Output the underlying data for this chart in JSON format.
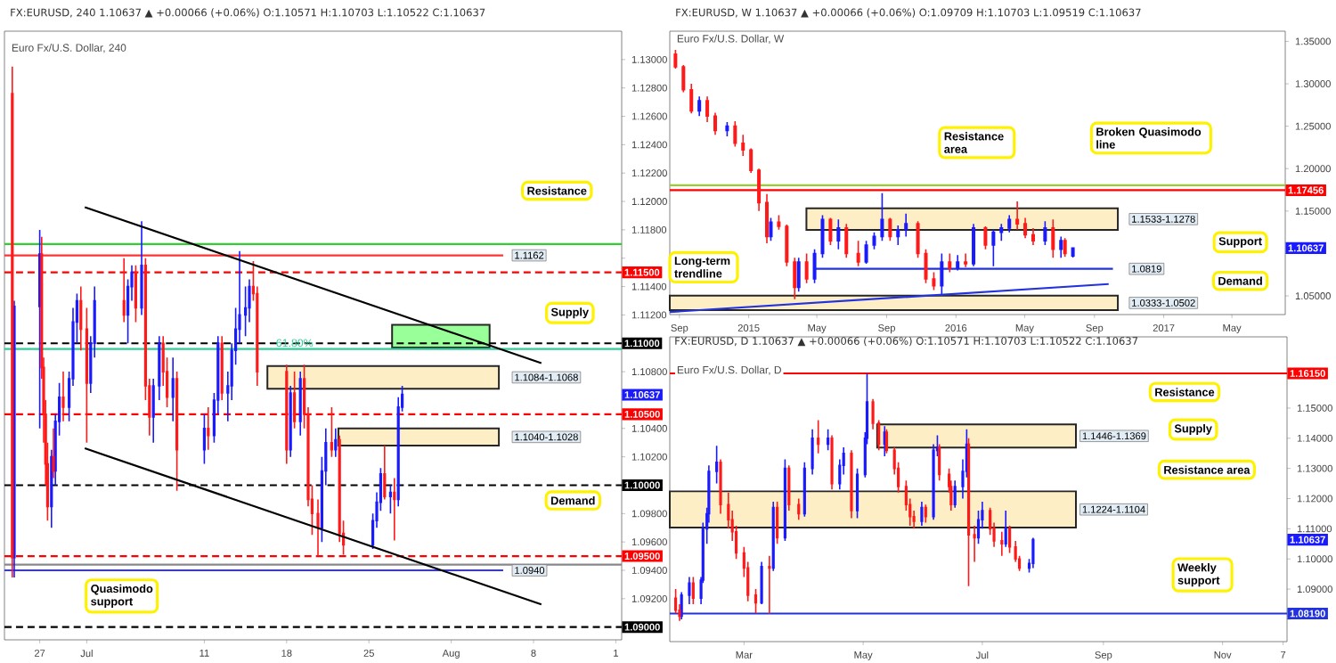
{
  "chart_data": [
    {
      "type": "candlestick",
      "title": "FX:EURUSD, 240 1.10637 ▲ +0.00066 (+0.06%) O:1.10571 H:1.10703 L:1.10522 C:1.10637",
      "subtitle": "Euro Fx/U.S. Dollar, 240",
      "xlim": [
        "2016-06-24T00:00",
        "2016-08-15T12:00"
      ],
      "ylim": [
        1.0891,
        1.132
      ],
      "xticks": [
        {
          "value": "2016-06-27",
          "label": "27"
        },
        {
          "value": "2016-07-01",
          "label": "Jul"
        },
        {
          "value": "2016-07-11",
          "label": "11"
        },
        {
          "value": "2016-07-18",
          "label": "18"
        },
        {
          "value": "2016-07-25",
          "label": "25"
        },
        {
          "value": "2016-08-01",
          "label": "Aug"
        },
        {
          "value": "2016-08-08",
          "label": "8"
        },
        {
          "value": "2016-08-15",
          "label": "1"
        }
      ],
      "yticks": [
        {
          "value": 1.09,
          "label": null
        },
        {
          "value": 1.092,
          "label": "1.09200"
        },
        {
          "value": 1.094,
          "label": "1.09400"
        },
        {
          "value": 1.096,
          "label": "1.09600"
        },
        {
          "value": 1.098,
          "label": "1.09800"
        },
        {
          "value": 1.1,
          "label": null
        },
        {
          "value": 1.102,
          "label": "1.10200"
        },
        {
          "value": 1.104,
          "label": "1.10400"
        },
        {
          "value": 1.106,
          "label": null
        },
        {
          "value": 1.108,
          "label": "1.10800"
        },
        {
          "value": 1.11,
          "label": null
        },
        {
          "value": 1.112,
          "label": "1.11200"
        },
        {
          "value": 1.114,
          "label": "1.11400"
        },
        {
          "value": 1.116,
          "label": null
        },
        {
          "value": 1.118,
          "label": "1.11800"
        },
        {
          "value": 1.12,
          "label": "1.12000"
        },
        {
          "value": 1.122,
          "label": "1.12200"
        },
        {
          "value": 1.124,
          "label": "1.12400"
        },
        {
          "value": 1.126,
          "label": "1.12600"
        },
        {
          "value": 1.128,
          "label": "1.12800"
        },
        {
          "value": 1.13,
          "label": "1.13000"
        }
      ],
      "series": [
        {
          "color": "#1a1aff",
          "x": [
            "2016-06-24T20:00",
            "2016-06-27T00:00",
            "2016-06-28T00:00",
            "2016-06-28T08:00",
            "2016-06-28T16:00",
            "2016-06-29T12:00",
            "2016-06-29T20:00",
            "2016-06-30T04:00",
            "2016-07-01T08:00",
            "2016-07-01T16:00",
            "2016-07-04T12:00",
            "2016-07-04T20:00",
            "2016-07-05T16:00",
            "2016-07-06T16:00",
            "2016-07-07T04:00",
            "2016-07-08T08:00",
            "2016-07-11T00:00",
            "2016-07-11T20:00",
            "2016-07-12T04:00",
            "2016-07-13T00:00",
            "2016-07-13T08:00",
            "2016-07-13T16:00",
            "2016-07-14T00:00",
            "2016-07-14T12:00",
            "2016-07-14T20:00",
            "2016-07-18T08:00",
            "2016-07-19T04:00",
            "2016-07-21T00:00",
            "2016-07-21T08:00",
            "2016-07-22T04:00",
            "2016-07-25T08:00",
            "2016-07-25T16:00",
            "2016-07-26T00:00",
            "2016-07-26T20:00",
            "2016-07-27T12:00",
            "2016-07-27T20:00"
          ],
          "ohlc": [
            [
              1.0949,
              1.113,
              1.0935,
              1.1126
            ],
            [
              1.1126,
              1.118,
              1.104,
              1.1163
            ],
            [
              1.0985,
              1.1025,
              1.097,
              1.102
            ],
            [
              1.101,
              1.105,
              1.1,
              1.1045
            ],
            [
              1.1045,
              1.1072,
              1.1035,
              1.1062
            ],
            [
              1.1055,
              1.108,
              1.1045,
              1.1075
            ],
            [
              1.1075,
              1.1125,
              1.107,
              1.1115
            ],
            [
              1.1115,
              1.1135,
              1.11,
              1.113
            ],
            [
              1.1072,
              1.1105,
              1.1065,
              1.11
            ],
            [
              1.11,
              1.114,
              1.109,
              1.113
            ],
            [
              1.112,
              1.1145,
              1.11,
              1.114
            ],
            [
              1.114,
              1.1155,
              1.113,
              1.115
            ],
            [
              1.1125,
              1.1186,
              1.112,
              1.1155
            ],
            [
              1.1048,
              1.1075,
              1.103,
              1.107
            ],
            [
              1.107,
              1.1105,
              1.106,
              1.11
            ],
            [
              1.1062,
              1.109,
              1.1045,
              1.1075
            ],
            [
              1.1025,
              1.105,
              1.1015,
              1.104
            ],
            [
              1.1035,
              1.1065,
              1.103,
              1.106
            ],
            [
              1.106,
              1.1105,
              1.105,
              1.11
            ],
            [
              1.1065,
              1.108,
              1.1045,
              1.107
            ],
            [
              1.107,
              1.11,
              1.106,
              1.1095
            ],
            [
              1.1095,
              1.1125,
              1.1085,
              1.111
            ],
            [
              1.111,
              1.1165,
              1.11,
              1.112
            ],
            [
              1.112,
              1.114,
              1.1105,
              1.1125
            ],
            [
              1.1125,
              1.1145,
              1.1115,
              1.114
            ],
            [
              1.1025,
              1.107,
              1.102,
              1.1065
            ],
            [
              1.1045,
              1.108,
              1.1035,
              1.1075
            ],
            [
              1.097,
              1.102,
              1.096,
              1.101
            ],
            [
              1.101,
              1.104,
              1.1,
              1.103
            ],
            [
              1.1025,
              1.104,
              1.102,
              1.1032
            ],
            [
              1.0958,
              1.098,
              1.0955,
              1.0975
            ],
            [
              1.0975,
              1.0995,
              1.097,
              1.0988
            ],
            [
              1.0988,
              1.1012,
              1.0982,
              1.1008
            ],
            [
              1.0992,
              1.1,
              1.098,
              1.0995
            ],
            [
              1.099,
              1.1062,
              1.0985,
              1.1055
            ],
            [
              1.1055,
              1.107,
              1.1052,
              1.1064
            ]
          ]
        },
        {
          "color": "#ff1a1a",
          "x": [
            "2016-06-24T16:00",
            "2016-06-27T04:00",
            "2016-06-27T08:00",
            "2016-06-27T12:00",
            "2016-06-27T16:00",
            "2016-06-28T04:00",
            "2016-06-29T00:00",
            "2016-06-30T12:00",
            "2016-07-01T00:00",
            "2016-07-04T04:00",
            "2016-07-05T04:00",
            "2016-07-06T00:00",
            "2016-07-06T08:00",
            "2016-07-07T12:00",
            "2016-07-07T20:00",
            "2016-07-08T16:00",
            "2016-07-11T08:00",
            "2016-07-12T12:00",
            "2016-07-15T04:00",
            "2016-07-15T12:00",
            "2016-07-18T00:00",
            "2016-07-18T16:00",
            "2016-07-19T12:00",
            "2016-07-19T20:00",
            "2016-07-20T04:00",
            "2016-07-20T16:00",
            "2016-07-21T20:00",
            "2016-07-22T12:00",
            "2016-07-22T20:00",
            "2016-07-26T08:00",
            "2016-07-27T04:00"
          ],
          "ohlc": [
            [
              1.1276,
              1.1295,
              1.0935,
              1.0949
            ],
            [
              1.1163,
              1.1175,
              1.1075,
              1.1083
            ],
            [
              1.1083,
              1.109,
              1.103,
              1.105
            ],
            [
              1.105,
              1.106,
              1.1,
              1.1015
            ],
            [
              1.1015,
              1.103,
              1.0975,
              1.0985
            ],
            [
              1.102,
              1.104,
              1.1005,
              1.101
            ],
            [
              1.1062,
              1.108,
              1.1045,
              1.1055
            ],
            [
              1.113,
              1.114,
              1.1095,
              1.111
            ],
            [
              1.111,
              1.1125,
              1.103,
              1.1072
            ],
            [
              1.113,
              1.116,
              1.1115,
              1.112
            ],
            [
              1.115,
              1.1155,
              1.1115,
              1.1125
            ],
            [
              1.1155,
              1.116,
              1.106,
              1.107
            ],
            [
              1.107,
              1.1075,
              1.1035,
              1.1048
            ],
            [
              1.11,
              1.1105,
              1.107,
              1.108
            ],
            [
              1.108,
              1.109,
              1.1055,
              1.1062
            ],
            [
              1.1075,
              1.108,
              1.0996,
              1.1025
            ],
            [
              1.104,
              1.1055,
              1.1025,
              1.1035
            ],
            [
              1.11,
              1.1105,
              1.106,
              1.1065
            ],
            [
              1.114,
              1.1158,
              1.113,
              1.1135
            ],
            [
              1.1135,
              1.114,
              1.107,
              1.108
            ],
            [
              1.108,
              1.1085,
              1.1015,
              1.1025
            ],
            [
              1.1065,
              1.108,
              1.104,
              1.1045
            ],
            [
              1.1075,
              1.1085,
              1.104,
              1.105
            ],
            [
              1.105,
              1.1055,
              1.0985,
              1.099
            ],
            [
              1.099,
              1.1,
              1.0965,
              1.098
            ],
            [
              1.098,
              1.099,
              1.095,
              1.097
            ],
            [
              1.103,
              1.1055,
              1.102,
              1.1025
            ],
            [
              1.1032,
              1.1035,
              1.096,
              1.0966
            ],
            [
              1.0966,
              1.0975,
              1.0951,
              1.0958
            ],
            [
              1.1008,
              1.1028,
              1.099,
              1.0992
            ],
            [
              1.0995,
              1.1005,
              1.0961,
              1.099
            ]
          ]
        },
        {
          "type": "line",
          "color": "#000000",
          "x": [
            "2016-06-30T20:00",
            "2016-08-08T16:00"
          ],
          "values": [
            1.1196,
            1.1086
          ]
        },
        {
          "type": "line",
          "color": "#000000",
          "x": [
            "2016-06-30T20:00",
            "2016-08-08T16:00"
          ],
          "values": [
            1.1026,
            1.0916
          ]
        }
      ],
      "ref_lines": [
        {
          "axis": "y",
          "value": 1.117,
          "color": "#33cc33"
        },
        {
          "axis": "y",
          "value": 1.1162,
          "label": "1.1162",
          "color": "#ff3333"
        },
        {
          "axis": "y",
          "value": 1.115,
          "label": "1.11500",
          "color": "#ff0000",
          "line_style": "dashed"
        },
        {
          "axis": "y",
          "value": 1.11,
          "label": "1.11000",
          "color": "#000000",
          "line_style": "dashed"
        },
        {
          "axis": "y",
          "value": 1.1096,
          "color": "#33cc99"
        },
        {
          "axis": "y",
          "value": 1.105,
          "label": "1.10500",
          "color": "#ff0000",
          "line_style": "dashed"
        },
        {
          "axis": "y",
          "value": 1.1,
          "label": "1.10000",
          "color": "#000000",
          "line_style": "dashed"
        },
        {
          "axis": "y",
          "value": 1.095,
          "label": "1.09500",
          "color": "#ff0000",
          "line_style": "dashed"
        },
        {
          "axis": "y",
          "value": 1.0944,
          "color": "#888888"
        },
        {
          "axis": "y",
          "value": 1.094,
          "label": "1.0940",
          "color": "#3333ff"
        },
        {
          "axis": "y",
          "value": 1.09,
          "label": "1.09000",
          "color": "#000000",
          "line_style": "dashed"
        }
      ],
      "bands": [
        {
          "axis": "y",
          "from": 1.1068,
          "to": 1.1084,
          "label": "1.1084-1.1068",
          "color": "#fdeec6"
        },
        {
          "axis": "y",
          "from": 1.1028,
          "to": 1.104,
          "label": "1.1040-1.1028",
          "color": "#fdeec6"
        },
        {
          "axis": "y",
          "from": 1.1097,
          "to": 1.1113,
          "color": "#99ff99"
        }
      ],
      "annotations": [
        "Resistance",
        "Supply",
        "Demand",
        "Quasimodo support",
        "61.80%",
        "1.10637"
      ]
    },
    {
      "type": "candlestick",
      "title": "FX:EURUSD, W 1.10637 ▲ +0.00066 (+0.06%) O:1.09709 H:1.10703 L:1.09519 C:1.10637",
      "subtitle": "Euro Fx/U.S. Dollar, W",
      "xlim": [
        "2014-08-15",
        "2017-08-03"
      ],
      "ylim": [
        1.028,
        1.362
      ],
      "xticks": [
        {
          "value": "2014-09-01",
          "label": "Sep"
        },
        {
          "value": "2015-01-01",
          "label": "2015"
        },
        {
          "value": "2015-05-01",
          "label": "May"
        },
        {
          "value": "2015-09-01",
          "label": "Sep"
        },
        {
          "value": "2016-01-01",
          "label": "2016"
        },
        {
          "value": "2016-05-01",
          "label": "May"
        },
        {
          "value": "2016-09-01",
          "label": "Sep"
        },
        {
          "value": "2017-01-01",
          "label": "2017"
        },
        {
          "value": "2017-05-01",
          "label": "May"
        }
      ],
      "yticks": [
        {
          "value": 1.05,
          "label": "1.05000"
        },
        {
          "value": 1.1,
          "label": null
        },
        {
          "value": 1.15,
          "label": "1.15000"
        },
        {
          "value": 1.2,
          "label": "1.20000"
        },
        {
          "value": 1.25,
          "label": "1.25000"
        },
        {
          "value": 1.3,
          "label": "1.30000"
        },
        {
          "value": 1.35,
          "label": "1.35000"
        }
      ],
      "series": [
        {
          "color": "#1a1aff",
          "x": [
            "2014-10-06",
            "2014-11-24",
            "2015-02-09",
            "2015-03-30",
            "2015-04-27",
            "2015-05-11",
            "2015-06-08",
            "2015-07-27",
            "2015-08-10",
            "2015-08-24",
            "2015-09-21",
            "2015-10-05",
            "2015-12-07",
            "2016-01-04",
            "2016-02-01",
            "2016-03-07",
            "2016-03-21",
            "2016-04-04",
            "2016-06-06",
            "2016-07-04",
            "2016-07-25"
          ],
          "ohlc": [
            [
              1.268,
              1.285,
              1.262,
              1.28
            ],
            [
              1.245,
              1.255,
              1.238,
              1.25
            ],
            [
              1.12,
              1.142,
              1.115,
              1.137
            ],
            [
              1.06,
              1.095,
              1.055,
              1.09
            ],
            [
              1.07,
              1.105,
              1.065,
              1.1
            ],
            [
              1.1,
              1.145,
              1.095,
              1.14
            ],
            [
              1.115,
              1.14,
              1.105,
              1.13
            ],
            [
              1.09,
              1.115,
              1.088,
              1.11
            ],
            [
              1.11,
              1.125,
              1.105,
              1.12
            ],
            [
              1.12,
              1.171,
              1.115,
              1.14
            ],
            [
              1.12,
              1.133,
              1.11,
              1.128
            ],
            [
              1.128,
              1.147,
              1.12,
              1.135
            ],
            [
              1.062,
              1.1,
              1.052,
              1.09
            ],
            [
              1.083,
              1.098,
              1.08,
              1.09
            ],
            [
              1.088,
              1.135,
              1.085,
              1.13
            ],
            [
              1.11,
              1.128,
              1.085,
              1.125
            ],
            [
              1.125,
              1.135,
              1.115,
              1.13
            ],
            [
              1.13,
              1.145,
              1.125,
              1.14
            ],
            [
              1.115,
              1.138,
              1.11,
              1.13
            ],
            [
              1.105,
              1.12,
              1.095,
              1.115
            ],
            [
              1.0971,
              1.107,
              1.0952,
              1.1064
            ]
          ]
        },
        {
          "color": "#ff1a1a",
          "x": [
            "2014-08-25",
            "2014-09-08",
            "2014-09-22",
            "2014-10-20",
            "2014-11-03",
            "2014-12-08",
            "2014-12-22",
            "2015-01-05",
            "2015-01-19",
            "2015-02-02",
            "2015-02-23",
            "2015-03-09",
            "2015-03-23",
            "2015-04-13",
            "2015-05-25",
            "2015-06-22",
            "2015-07-13",
            "2015-09-07",
            "2015-10-26",
            "2015-11-09",
            "2015-11-23",
            "2015-12-21",
            "2016-01-18",
            "2016-02-22",
            "2016-04-18",
            "2016-05-02",
            "2016-05-16",
            "2016-06-20",
            "2016-07-11"
          ],
          "ohlc": [
            [
              1.335,
              1.34,
              1.318,
              1.32
            ],
            [
              1.32,
              1.322,
              1.29,
              1.293
            ],
            [
              1.293,
              1.3,
              1.265,
              1.268
            ],
            [
              1.28,
              1.285,
              1.255,
              1.262
            ],
            [
              1.262,
              1.266,
              1.24,
              1.245
            ],
            [
              1.25,
              1.256,
              1.226,
              1.23
            ],
            [
              1.23,
              1.24,
              1.215,
              1.222
            ],
            [
              1.222,
              1.224,
              1.195,
              1.198
            ],
            [
              1.198,
              1.2,
              1.15,
              1.16
            ],
            [
              1.16,
              1.17,
              1.112,
              1.12
            ],
            [
              1.137,
              1.145,
              1.128,
              1.132
            ],
            [
              1.132,
              1.134,
              1.085,
              1.09
            ],
            [
              1.09,
              1.095,
              1.046,
              1.06
            ],
            [
              1.09,
              1.1,
              1.065,
              1.07
            ],
            [
              1.14,
              1.142,
              1.11,
              1.115
            ],
            [
              1.13,
              1.135,
              1.095,
              1.1
            ],
            [
              1.1,
              1.115,
              1.085,
              1.09
            ],
            [
              1.14,
              1.142,
              1.115,
              1.12
            ],
            [
              1.135,
              1.138,
              1.095,
              1.1
            ],
            [
              1.1,
              1.105,
              1.065,
              1.07
            ],
            [
              1.07,
              1.078,
              1.057,
              1.062
            ],
            [
              1.09,
              1.1,
              1.078,
              1.083
            ],
            [
              1.09,
              1.1,
              1.084,
              1.088
            ],
            [
              1.13,
              1.132,
              1.105,
              1.11
            ],
            [
              1.14,
              1.1615,
              1.128,
              1.135
            ],
            [
              1.135,
              1.142,
              1.118,
              1.122
            ],
            [
              1.122,
              1.13,
              1.11,
              1.115
            ],
            [
              1.13,
              1.14,
              1.095,
              1.105
            ],
            [
              1.115,
              1.118,
              1.096,
              1.1
            ]
          ]
        },
        {
          "type": "line",
          "color": "#2233dd",
          "x": [
            "2014-08-15",
            "2016-09-26"
          ],
          "values": [
            1.031,
            1.064
          ]
        }
      ],
      "ref_lines": [
        {
          "axis": "y",
          "value": 1.1804,
          "color": "#99cc33"
        },
        {
          "axis": "y",
          "value": 1.17456,
          "label": "1.17456",
          "color": "#ff0000"
        },
        {
          "axis": "y",
          "value": 1.0819,
          "label": "1.0819",
          "color": "#2233dd"
        }
      ],
      "bands": [
        {
          "axis": "y",
          "from": 1.1278,
          "to": 1.1533,
          "label": "1.1533-1.1278",
          "color": "#fdeec6"
        },
        {
          "axis": "y",
          "from": 1.0333,
          "to": 1.0502,
          "label": "1.0333-1.0502",
          "color": "#fdeec6"
        }
      ],
      "annotations": [
        "Resistance area",
        "Broken Quasimodo line",
        "Support",
        "Demand",
        "Long-term trendline",
        "1.10637"
      ]
    },
    {
      "type": "candlestick",
      "title": "FX:EURUSD, D 1.10637 ▲ +0.00066 (+0.06%) O:1.10571 H:1.10703 L:1.10522 C:1.10637",
      "subtitle": "Euro Fx/U.S. Dollar, D",
      "xlim": [
        "2016-01-23",
        "2016-12-04"
      ],
      "ylim": [
        1.0726,
        1.1736
      ],
      "xticks": [
        {
          "value": "2016-03-01",
          "label": "Mar"
        },
        {
          "value": "2016-05-01",
          "label": "May"
        },
        {
          "value": "2016-07-01",
          "label": "Jul"
        },
        {
          "value": "2016-09-01",
          "label": "Sep"
        },
        {
          "value": "2016-11-01",
          "label": "Nov"
        },
        {
          "value": "2016-12-02",
          "label": "7"
        }
      ],
      "yticks": [
        {
          "value": 1.08,
          "label": null
        },
        {
          "value": 1.09,
          "label": "1.09000"
        },
        {
          "value": 1.1,
          "label": "1.10000"
        },
        {
          "value": 1.11,
          "label": "1.11000"
        },
        {
          "value": 1.12,
          "label": "1.12000"
        },
        {
          "value": 1.13,
          "label": "1.13000"
        },
        {
          "value": 1.14,
          "label": "1.14000"
        },
        {
          "value": 1.15,
          "label": "1.15000"
        },
        {
          "value": 1.16,
          "label": null
        }
      ],
      "series": [
        {
          "color": "#1a1aff",
          "x": [
            "2016-01-29",
            "2016-02-02",
            "2016-02-08",
            "2016-02-09",
            "2016-02-11",
            "2016-02-12",
            "2016-02-16",
            "2016-03-10",
            "2016-03-16",
            "2016-03-22",
            "2016-04-01",
            "2016-04-05",
            "2016-04-13",
            "2016-04-19",
            "2016-04-21",
            "2016-04-28",
            "2016-05-02",
            "2016-05-03",
            "2016-05-12",
            "2016-05-31",
            "2016-06-06",
            "2016-06-08",
            "2016-06-17",
            "2016-06-21",
            "2016-06-23",
            "2016-06-29",
            "2016-07-01",
            "2016-07-13",
            "2016-07-25",
            "2016-07-27"
          ],
          "ohlc": [
            [
              1.081,
              1.089,
              1.08,
              1.088
            ],
            [
              1.088,
              1.094,
              1.085,
              1.092
            ],
            [
              1.087,
              1.094,
              1.085,
              1.093
            ],
            [
              1.093,
              1.112,
              1.092,
              1.11
            ],
            [
              1.11,
              1.117,
              1.105,
              1.115
            ],
            [
              1.115,
              1.131,
              1.112,
              1.129
            ],
            [
              1.129,
              1.1375,
              1.125,
              1.132
            ],
            [
              1.0855,
              1.099,
              1.085,
              1.0975
            ],
            [
              1.097,
              1.119,
              1.096,
              1.117
            ],
            [
              1.107,
              1.133,
              1.106,
              1.13
            ],
            [
              1.115,
              1.132,
              1.114,
              1.13
            ],
            [
              1.13,
              1.143,
              1.128,
              1.14
            ],
            [
              1.138,
              1.143,
              1.136,
              1.14
            ],
            [
              1.125,
              1.133,
              1.123,
              1.131
            ],
            [
              1.131,
              1.137,
              1.128,
              1.135
            ],
            [
              1.116,
              1.13,
              1.1135,
              1.128
            ],
            [
              1.128,
              1.142,
              1.127,
              1.14
            ],
            [
              1.14,
              1.1615,
              1.138,
              1.152
            ],
            [
              1.138,
              1.144,
              1.134,
              1.142
            ],
            [
              1.1125,
              1.119,
              1.111,
              1.117
            ],
            [
              1.114,
              1.138,
              1.113,
              1.136
            ],
            [
              1.136,
              1.141,
              1.134,
              1.137
            ],
            [
              1.118,
              1.126,
              1.117,
              1.124
            ],
            [
              1.124,
              1.133,
              1.12,
              1.129
            ],
            [
              1.129,
              1.143,
              1.127,
              1.138
            ],
            [
              1.107,
              1.116,
              1.105,
              1.113
            ],
            [
              1.113,
              1.119,
              1.11,
              1.116
            ],
            [
              1.105,
              1.116,
              1.104,
              1.11
            ],
            [
              1.097,
              1.1,
              1.0955,
              1.0985
            ],
            [
              1.0985,
              1.107,
              1.097,
              1.1064
            ]
          ]
        },
        {
          "color": "#ff1a1a",
          "x": [
            "2016-01-26",
            "2016-01-28",
            "2016-02-04",
            "2016-02-18",
            "2016-02-22",
            "2016-02-24",
            "2016-02-26",
            "2016-03-01",
            "2016-03-03",
            "2016-03-07",
            "2016-03-14",
            "2016-03-18",
            "2016-03-24",
            "2016-03-29",
            "2016-04-08",
            "2016-04-15",
            "2016-04-25",
            "2016-05-06",
            "2016-05-09",
            "2016-05-13",
            "2016-05-17",
            "2016-05-19",
            "2016-05-23",
            "2016-05-25",
            "2016-05-27",
            "2016-06-02",
            "2016-06-09",
            "2016-06-14",
            "2016-06-15",
            "2016-06-24",
            "2016-06-27",
            "2016-07-05",
            "2016-07-07",
            "2016-07-11",
            "2016-07-15",
            "2016-07-18",
            "2016-07-20"
          ],
          "ohlc": [
            [
              1.087,
              1.09,
              1.082,
              1.083
            ],
            [
              1.083,
              1.085,
              1.0795,
              1.081
            ],
            [
              1.092,
              1.094,
              1.085,
              1.087
            ],
            [
              1.132,
              1.133,
              1.115,
              1.118
            ],
            [
              1.118,
              1.122,
              1.11,
              1.113
            ],
            [
              1.113,
              1.116,
              1.106,
              1.109
            ],
            [
              1.109,
              1.111,
              1.1,
              1.102
            ],
            [
              1.102,
              1.104,
              1.094,
              1.097
            ],
            [
              1.097,
              1.099,
              1.086,
              1.088
            ],
            [
              1.088,
              1.09,
              1.082,
              1.0855
            ],
            [
              1.0975,
              1.101,
              1.0818,
              1.097
            ],
            [
              1.117,
              1.119,
              1.105,
              1.107
            ],
            [
              1.13,
              1.131,
              1.116,
              1.118
            ],
            [
              1.118,
              1.12,
              1.113,
              1.115
            ],
            [
              1.14,
              1.146,
              1.135,
              1.138
            ],
            [
              1.14,
              1.141,
              1.123,
              1.125
            ],
            [
              1.135,
              1.136,
              1.1135,
              1.116
            ],
            [
              1.152,
              1.153,
              1.143,
              1.145
            ],
            [
              1.145,
              1.146,
              1.136,
              1.138
            ],
            [
              1.142,
              1.143,
              1.135,
              1.136
            ],
            [
              1.136,
              1.137,
              1.128,
              1.13
            ],
            [
              1.13,
              1.132,
              1.122,
              1.124
            ],
            [
              1.124,
              1.126,
              1.116,
              1.118
            ],
            [
              1.118,
              1.12,
              1.111,
              1.114
            ],
            [
              1.114,
              1.116,
              1.11,
              1.1125
            ],
            [
              1.117,
              1.118,
              1.112,
              1.114
            ],
            [
              1.137,
              1.138,
              1.126,
              1.128
            ],
            [
              1.128,
              1.13,
              1.122,
              1.124
            ],
            [
              1.124,
              1.126,
              1.116,
              1.118
            ],
            [
              1.138,
              1.14,
              1.091,
              1.108
            ],
            [
              1.108,
              1.111,
              1.099,
              1.107
            ],
            [
              1.116,
              1.117,
              1.108,
              1.11
            ],
            [
              1.11,
              1.112,
              1.104,
              1.106
            ],
            [
              1.106,
              1.109,
              1.101,
              1.105
            ],
            [
              1.11,
              1.111,
              1.102,
              1.104
            ],
            [
              1.104,
              1.106,
              1.099,
              1.1
            ],
            [
              1.1,
              1.101,
              1.096,
              1.097
            ]
          ]
        }
      ],
      "ref_lines": [
        {
          "axis": "y",
          "value": 1.1615,
          "label": "1.16150",
          "color": "#ff0000"
        },
        {
          "axis": "y",
          "value": 1.0819,
          "label": "1.08190",
          "color": "#2233dd"
        }
      ],
      "bands": [
        {
          "axis": "y",
          "from": 1.1369,
          "to": 1.1446,
          "label": "1.1446-1.1369",
          "color": "#fdeec6"
        },
        {
          "axis": "y",
          "from": 1.1104,
          "to": 1.1224,
          "label": "1.1224-1.1104",
          "color": "#fdeec6"
        }
      ],
      "annotations": [
        "Resistance",
        "Supply",
        "Resistance area",
        "Weekly support",
        "1.10637"
      ]
    }
  ]
}
